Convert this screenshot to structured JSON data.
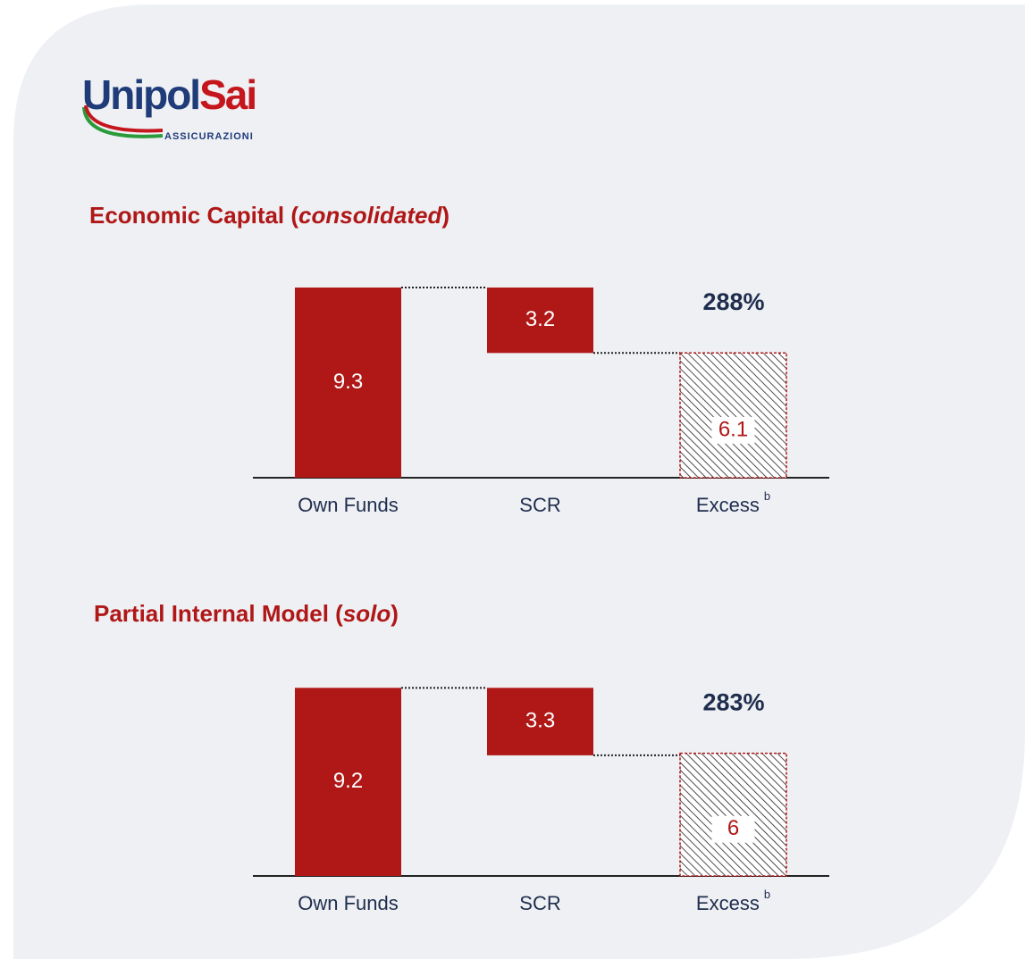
{
  "logo": {
    "name": [
      "Unipol",
      "Sai"
    ],
    "tagline": "ASSICURAZIONI"
  },
  "chart_data": [
    {
      "type": "waterfall",
      "title": [
        "Economic Capital (",
        "consolidated",
        ")"
      ],
      "categories": [
        "Own Funds",
        "SCR",
        "Excess"
      ],
      "category_note": "b",
      "values": [
        9.3,
        3.2,
        6.1
      ],
      "annotation": "288%",
      "color": "#b01717",
      "ylim": [
        0,
        10
      ]
    },
    {
      "type": "waterfall",
      "title": [
        "Partial Internal Model (",
        "solo",
        ")"
      ],
      "categories": [
        "Own Funds",
        "SCR",
        "Excess"
      ],
      "category_note": "b",
      "values": [
        9.2,
        3.3,
        6.0
      ],
      "annotation": "283%",
      "color": "#b01717",
      "ylim": [
        0,
        10
      ]
    }
  ]
}
